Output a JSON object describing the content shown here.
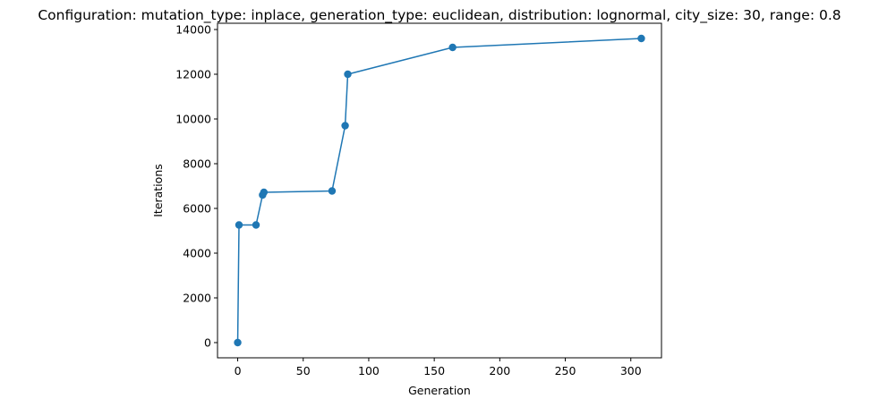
{
  "chart_data": {
    "type": "line",
    "title": "Configuration: mutation_type: inplace, generation_type: euclidean, distribution: lognormal, city_size: 30, range: 0.8",
    "xlabel": "Generation",
    "ylabel": "Iterations",
    "xlim": [
      -15.4,
      323.4
    ],
    "ylim": [
      -680,
      14280
    ],
    "xticks": [
      0,
      50,
      100,
      150,
      200,
      250,
      300
    ],
    "yticks": [
      0,
      2000,
      4000,
      6000,
      8000,
      10000,
      12000,
      14000
    ],
    "grid": false,
    "marker": "circle",
    "color": "#1f77b4",
    "series": [
      {
        "x": [
          0,
          1,
          14,
          19,
          20,
          72,
          82,
          84,
          164,
          308
        ],
        "y": [
          0,
          5260,
          5260,
          6600,
          6720,
          6780,
          9700,
          12000,
          13200,
          13600
        ]
      }
    ]
  }
}
